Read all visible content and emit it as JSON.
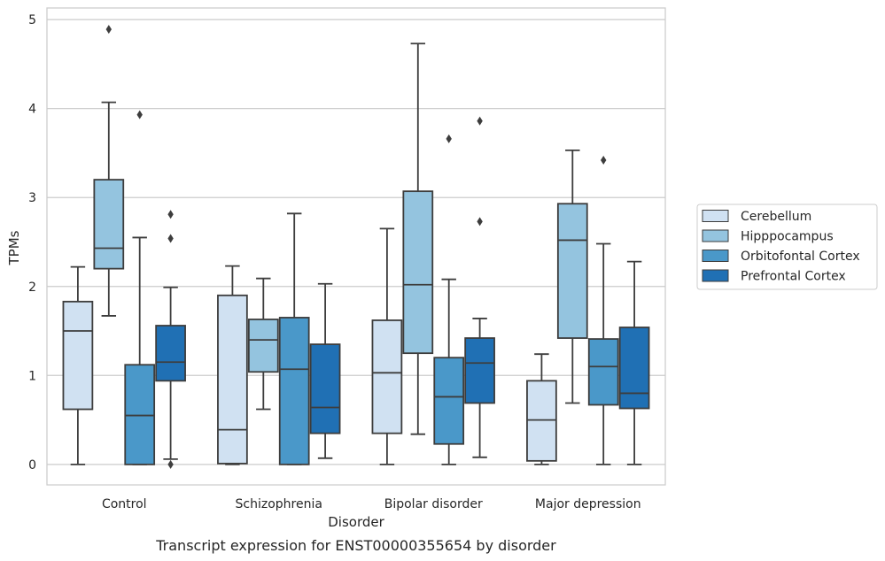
{
  "chart_data": {
    "type": "box",
    "caption": "Transcript expression for ENST00000355654 by disorder",
    "xlabel": "Disorder",
    "ylabel": "TPMs",
    "ylim": [
      -0.23,
      5.13
    ],
    "yticks": [
      0,
      1,
      2,
      3,
      4,
      5
    ],
    "grid": "horizontal",
    "legend_position": "right",
    "categories": [
      "Control",
      "Schizophrenia",
      "Bipolar disorder",
      "Major depression"
    ],
    "series": [
      {
        "name": "Cerebellum",
        "color": "#d0e1f2",
        "boxes": [
          {
            "whisker_low": 0.0,
            "q1": 0.62,
            "median": 1.5,
            "q3": 1.83,
            "whisker_high": 2.22,
            "outliers": []
          },
          {
            "whisker_low": 0.0,
            "q1": 0.01,
            "median": 0.39,
            "q3": 1.9,
            "whisker_high": 2.23,
            "outliers": []
          },
          {
            "whisker_low": 0.0,
            "q1": 0.35,
            "median": 1.03,
            "q3": 1.62,
            "whisker_high": 2.65,
            "outliers": []
          },
          {
            "whisker_low": 0.0,
            "q1": 0.04,
            "median": 0.5,
            "q3": 0.94,
            "whisker_high": 1.24,
            "outliers": []
          }
        ]
      },
      {
        "name": "Hipppocampus",
        "color": "#94c4df",
        "boxes": [
          {
            "whisker_low": 1.67,
            "q1": 2.2,
            "median": 2.43,
            "q3": 3.2,
            "whisker_high": 4.07,
            "outliers": [
              4.89
            ]
          },
          {
            "whisker_low": 0.62,
            "q1": 1.04,
            "median": 1.4,
            "q3": 1.63,
            "whisker_high": 2.09,
            "outliers": []
          },
          {
            "whisker_low": 0.34,
            "q1": 1.25,
            "median": 2.02,
            "q3": 3.07,
            "whisker_high": 4.73,
            "outliers": []
          },
          {
            "whisker_low": 0.69,
            "q1": 1.42,
            "median": 2.52,
            "q3": 2.93,
            "whisker_high": 3.53,
            "outliers": []
          }
        ]
      },
      {
        "name": "Orbitofontal Cortex",
        "color": "#4a98c9",
        "boxes": [
          {
            "whisker_low": 0.0,
            "q1": 0.0,
            "median": 0.55,
            "q3": 1.12,
            "whisker_high": 2.55,
            "outliers": [
              3.93
            ]
          },
          {
            "whisker_low": 0.0,
            "q1": 0.0,
            "median": 1.07,
            "q3": 1.65,
            "whisker_high": 2.82,
            "outliers": []
          },
          {
            "whisker_low": 0.0,
            "q1": 0.23,
            "median": 0.76,
            "q3": 1.2,
            "whisker_high": 2.08,
            "outliers": [
              3.66
            ]
          },
          {
            "whisker_low": 0.0,
            "q1": 0.67,
            "median": 1.1,
            "q3": 1.41,
            "whisker_high": 2.48,
            "outliers": [
              3.42
            ]
          }
        ]
      },
      {
        "name": "Prefrontal Cortex",
        "color": "#2070b4",
        "boxes": [
          {
            "whisker_low": 0.06,
            "q1": 0.94,
            "median": 1.15,
            "q3": 1.56,
            "whisker_high": 1.99,
            "outliers": [
              0.0,
              2.54,
              2.81
            ]
          },
          {
            "whisker_low": 0.07,
            "q1": 0.35,
            "median": 0.64,
            "q3": 1.35,
            "whisker_high": 2.03,
            "outliers": []
          },
          {
            "whisker_low": 0.08,
            "q1": 0.69,
            "median": 1.14,
            "q3": 1.42,
            "whisker_high": 1.64,
            "outliers": [
              2.73,
              3.86
            ]
          },
          {
            "whisker_low": 0.0,
            "q1": 0.63,
            "median": 0.8,
            "q3": 1.54,
            "whisker_high": 2.28,
            "outliers": []
          }
        ]
      }
    ]
  }
}
